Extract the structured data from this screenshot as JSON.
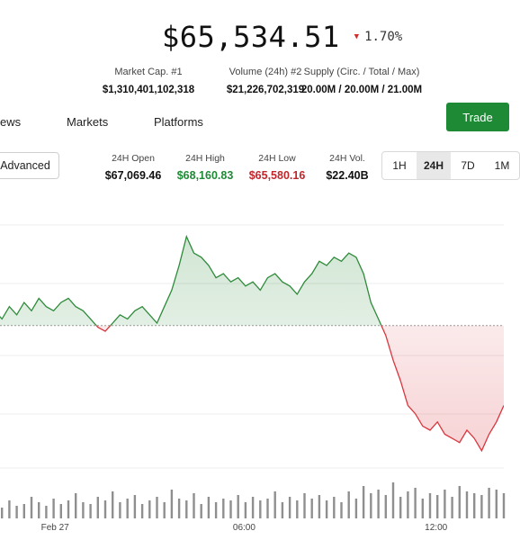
{
  "ticker": {
    "price": "$65,534.51",
    "change": "1.70%",
    "change_direction": "down",
    "down_color": "#d12b2b"
  },
  "stats": [
    {
      "label": "Market Cap. #1",
      "value": "$1,310,401,102,318"
    },
    {
      "label": "Volume (24h) #2",
      "value": "$21,226,702,319"
    },
    {
      "label": "Supply (Circ. / Total / Max)",
      "value": "20.00M / 20.00M / 21.00M"
    }
  ],
  "tabs": [
    "ews",
    "Markets",
    "Platforms"
  ],
  "trade_button": {
    "label": "Trade",
    "color": "#1f8a36"
  },
  "advanced_button": {
    "label": "Advanced"
  },
  "ohlc": [
    {
      "label": "24H Open",
      "value": "$67,069.46",
      "color": "#111111"
    },
    {
      "label": "24H High",
      "value": "$68,160.83",
      "color": "#1f8a36"
    },
    {
      "label": "24H Low",
      "value": "$65,580.16",
      "color": "#c0272d"
    },
    {
      "label": "24H Vol.",
      "value": "$22.40B",
      "color": "#111111"
    }
  ],
  "ranges": {
    "items": [
      "1H",
      "24H",
      "7D",
      "1M"
    ],
    "active": "24H"
  },
  "chart_data": {
    "type": "area",
    "baseline": 67069.46,
    "ylim": [
      65450,
      68400
    ],
    "up_color": "#2e8b3a",
    "down_color": "#d9363e",
    "x_ticks": [
      {
        "label": "Feb 27",
        "i": 8
      },
      {
        "label": "06:00",
        "i": 34
      },
      {
        "label": "12:00",
        "i": 60
      }
    ],
    "values": [
      67250,
      67150,
      67300,
      67200,
      67350,
      67250,
      67400,
      67300,
      67250,
      67350,
      67400,
      67300,
      67250,
      67150,
      67050,
      67000,
      67100,
      67200,
      67150,
      67250,
      67300,
      67200,
      67100,
      67300,
      67500,
      67800,
      68150,
      67950,
      67900,
      67800,
      67650,
      67700,
      67600,
      67650,
      67550,
      67600,
      67500,
      67650,
      67700,
      67600,
      67550,
      67450,
      67600,
      67700,
      67850,
      67800,
      67900,
      67850,
      67950,
      67900,
      67700,
      67350,
      67150,
      66950,
      66650,
      66400,
      66100,
      66000,
      65850,
      65800,
      65900,
      65750,
      65700,
      65650,
      65800,
      65700,
      65550,
      65750,
      65900,
      66100
    ],
    "volumes": [
      9,
      6,
      10,
      7,
      8,
      12,
      9,
      7,
      11,
      8,
      10,
      14,
      9,
      8,
      12,
      10,
      15,
      9,
      11,
      13,
      8,
      10,
      12,
      9,
      16,
      11,
      10,
      14,
      8,
      12,
      9,
      11,
      10,
      13,
      9,
      12,
      10,
      11,
      15,
      9,
      12,
      10,
      14,
      11,
      13,
      10,
      12,
      9,
      15,
      11,
      18,
      14,
      16,
      13,
      20,
      12,
      15,
      17,
      11,
      14,
      13,
      16,
      12,
      18,
      15,
      14,
      13,
      17,
      16,
      14
    ]
  }
}
